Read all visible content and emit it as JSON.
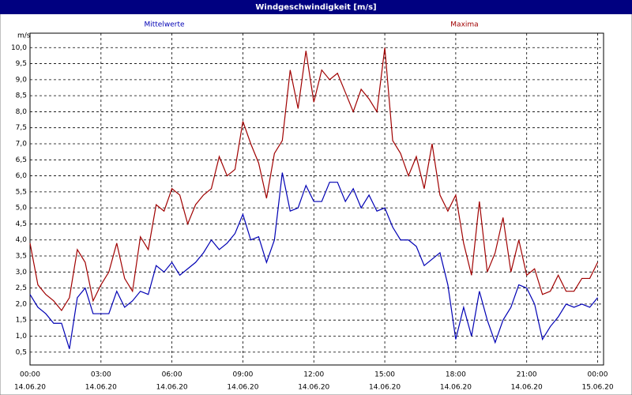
{
  "chart_data": {
    "type": "line",
    "title": "Windgeschwindigkeit [m/s]",
    "y_label": "m/s",
    "x": [
      0,
      20,
      40,
      60,
      80,
      100,
      120,
      140,
      160,
      180,
      200,
      220,
      240,
      260,
      280,
      300,
      320,
      340,
      360,
      380,
      400,
      420,
      440,
      460,
      480,
      500,
      520,
      540,
      560,
      580,
      600,
      620,
      640,
      660,
      680,
      700,
      720,
      740,
      760,
      780,
      800,
      820,
      840,
      860,
      880,
      900,
      920,
      940,
      960,
      980,
      1000,
      1020,
      1040,
      1060,
      1080,
      1100,
      1120,
      1140,
      1160,
      1180,
      1200,
      1220,
      1240,
      1260,
      1280,
      1300,
      1320,
      1340,
      1360,
      1380,
      1400,
      1420,
      1440
    ],
    "series": [
      {
        "name": "Mittelwerte",
        "color": "#0000b4",
        "values": [
          2.3,
          1.9,
          1.7,
          1.4,
          1.4,
          0.6,
          2.2,
          2.5,
          1.7,
          1.7,
          1.7,
          2.4,
          1.9,
          2.1,
          2.4,
          2.3,
          3.2,
          3.0,
          3.3,
          2.9,
          3.1,
          3.3,
          3.6,
          4.0,
          3.7,
          3.9,
          4.2,
          4.8,
          4.0,
          4.1,
          3.3,
          4.0,
          6.1,
          4.9,
          5.0,
          5.7,
          5.2,
          5.2,
          5.8,
          5.8,
          5.2,
          5.6,
          5.0,
          5.4,
          4.9,
          5.0,
          4.4,
          4.0,
          4.0,
          3.8,
          3.2,
          3.4,
          3.6,
          2.6,
          0.9,
          1.9,
          1.0,
          2.4,
          1.5,
          0.8,
          1.5,
          1.9,
          2.6,
          2.5,
          2.0,
          0.9,
          1.3,
          1.6,
          2.0,
          1.9,
          2.0,
          1.9,
          2.2
        ]
      },
      {
        "name": "Maxima",
        "color": "#a00000",
        "values": [
          3.9,
          2.6,
          2.3,
          2.1,
          1.8,
          2.2,
          3.7,
          3.3,
          2.1,
          2.6,
          3.0,
          3.9,
          2.8,
          2.4,
          4.1,
          3.7,
          5.1,
          4.9,
          5.6,
          5.4,
          4.5,
          5.1,
          5.4,
          5.6,
          6.6,
          6.0,
          6.2,
          7.7,
          7.0,
          6.4,
          5.3,
          6.7,
          7.1,
          9.3,
          8.1,
          9.9,
          8.3,
          9.3,
          9.0,
          9.2,
          8.6,
          8.0,
          8.7,
          8.4,
          8.0,
          10.0,
          7.1,
          6.7,
          6.0,
          6.6,
          5.6,
          7.0,
          5.4,
          4.9,
          5.4,
          3.9,
          2.9,
          5.2,
          3.0,
          3.6,
          4.7,
          3.0,
          4.0,
          2.9,
          3.1,
          2.3,
          2.4,
          2.9,
          2.4,
          2.4,
          2.8,
          2.8,
          3.3
        ]
      }
    ],
    "xlim": [
      0,
      1455
    ],
    "xticks": [
      {
        "value": 0,
        "label": "00:00",
        "date": "14.06.20"
      },
      {
        "value": 180,
        "label": "03:00",
        "date": "14.06.20"
      },
      {
        "value": 360,
        "label": "06:00",
        "date": "14.06.20"
      },
      {
        "value": 540,
        "label": "09:00",
        "date": "14.06.20"
      },
      {
        "value": 720,
        "label": "12:00",
        "date": "14.06.20"
      },
      {
        "value": 900,
        "label": "15:00",
        "date": "14.06.20"
      },
      {
        "value": 1080,
        "label": "18:00",
        "date": "14.06.20"
      },
      {
        "value": 1260,
        "label": "21:00",
        "date": "14.06.20"
      },
      {
        "value": 1440,
        "label": "00:00",
        "date": "15.06.20"
      }
    ],
    "ylim": [
      0.1,
      10.45
    ],
    "yticks": [
      {
        "value": 0.5,
        "label": "0,5"
      },
      {
        "value": 1,
        "label": "1,0"
      },
      {
        "value": 1.5,
        "label": "1,5"
      },
      {
        "value": 2,
        "label": "2,0"
      },
      {
        "value": 2.5,
        "label": "2,5"
      },
      {
        "value": 3,
        "label": "3,0"
      },
      {
        "value": 3.5,
        "label": "3,5"
      },
      {
        "value": 4,
        "label": "4,0"
      },
      {
        "value": 4.5,
        "label": "4,5"
      },
      {
        "value": 5,
        "label": "5,0"
      },
      {
        "value": 5.5,
        "label": "5,5"
      },
      {
        "value": 6,
        "label": "6,0"
      },
      {
        "value": 6.5,
        "label": "6,5"
      },
      {
        "value": 7,
        "label": "7,0"
      },
      {
        "value": 7.5,
        "label": "7,5"
      },
      {
        "value": 8,
        "label": "8,0"
      },
      {
        "value": 8.5,
        "label": "8,5"
      },
      {
        "value": 9,
        "label": "9,0"
      },
      {
        "value": 9.5,
        "label": "9,5"
      },
      {
        "value": 10,
        "label": "10,0"
      }
    ],
    "grid": true
  }
}
